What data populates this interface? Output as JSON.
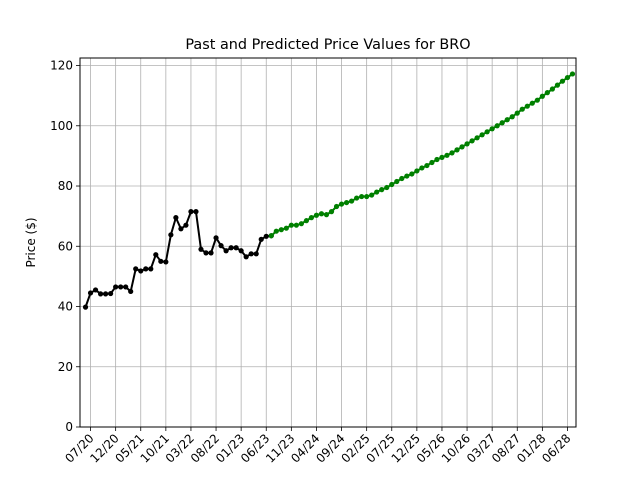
{
  "chart_data": {
    "type": "line",
    "title": "Past and Predicted Price Values for BRO",
    "xlabel": "",
    "ylabel": "Price ($)",
    "ylim": [
      0,
      120
    ],
    "yticks": [
      0,
      20,
      40,
      60,
      80,
      100,
      120
    ],
    "grid": true,
    "xticks": [
      "07/20",
      "12/20",
      "05/21",
      "10/21",
      "03/22",
      "08/22",
      "01/23",
      "06/23",
      "11/23",
      "04/24",
      "09/24",
      "02/25",
      "07/25",
      "12/25",
      "05/26",
      "10/26",
      "03/27",
      "08/27",
      "01/28",
      "06/28"
    ],
    "x_start": "2020-06",
    "colors": {
      "past": "#000000",
      "predicted": "#008000",
      "grid": "#b0b0b0"
    },
    "series": [
      {
        "role": "past",
        "start_month": "2020-06",
        "values": [
          39.8,
          44.5,
          45.5,
          44.2,
          44.2,
          44.3,
          46.5,
          46.5,
          46.5,
          45.0,
          52.5,
          51.8,
          52.5,
          52.5,
          57.2,
          55.0,
          54.8,
          63.8,
          69.5,
          65.8,
          67.0,
          71.5,
          71.5,
          59.0,
          57.8,
          57.8,
          62.8,
          60.2,
          58.5,
          59.5,
          59.5,
          58.5,
          56.5,
          57.5,
          57.5,
          62.3,
          63.3,
          63.5
        ]
      },
      {
        "role": "predicted",
        "start_month": "2023-07",
        "values": [
          63.5,
          65.0,
          65.5,
          66.0,
          67.0,
          67.0,
          67.5,
          68.5,
          69.5,
          70.3,
          70.8,
          70.5,
          71.5,
          73.2,
          74.0,
          74.5,
          75.0,
          76.0,
          76.5,
          76.5,
          77.0,
          78.0,
          78.8,
          79.5,
          80.5,
          81.5,
          82.5,
          83.3,
          84.0,
          85.0,
          86.0,
          86.8,
          87.8,
          88.8,
          89.5,
          90.2,
          91.0,
          92.0,
          93.0,
          94.0,
          95.0,
          96.0,
          97.0,
          98.0,
          99.0,
          100.0,
          101.0,
          102.0,
          103.0,
          104.2,
          105.5,
          106.5,
          107.5,
          108.5,
          109.8,
          111.0,
          112.2,
          113.5,
          114.8,
          116.0,
          117.2
        ]
      }
    ]
  }
}
